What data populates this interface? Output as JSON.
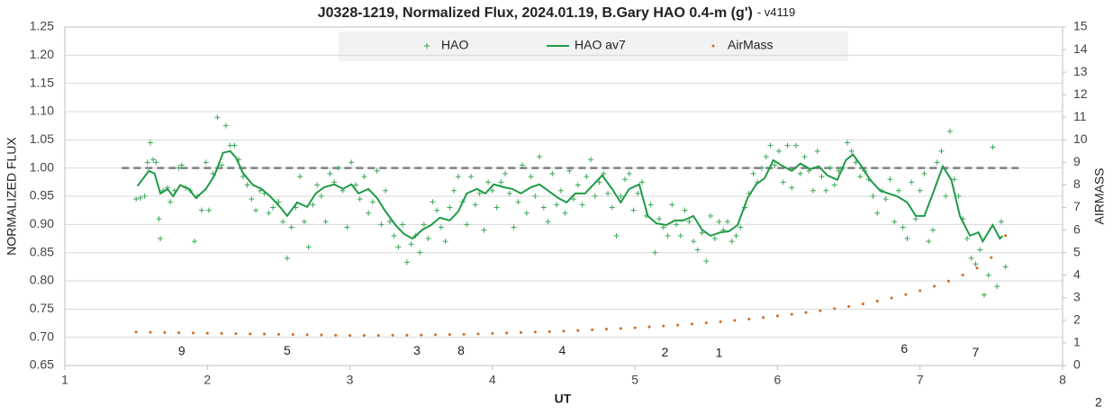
{
  "chart_data": {
    "type": "scatter",
    "title": "J0328-1219, Normalized Flux, 2024.01.19, B.Gary HAO 0.4-m (g')",
    "subtitle": "- v4119",
    "x_label": "UT",
    "y_label": "NORMALIZED FLUX",
    "y2_label": "AIRMASS",
    "xlim": [
      1,
      8
    ],
    "xticks": [
      1,
      2,
      3,
      4,
      5,
      6,
      7,
      8
    ],
    "ylim": [
      0.65,
      1.25
    ],
    "yticks": [
      {
        "value": 0.65,
        "label": "0.65"
      },
      {
        "value": 0.7,
        "label": "0.70"
      },
      {
        "value": 0.75,
        "label": "0.75"
      },
      {
        "value": 0.8,
        "label": "0.80"
      },
      {
        "value": 0.85,
        "label": "0.85"
      },
      {
        "value": 0.9,
        "label": "0.90"
      },
      {
        "value": 0.95,
        "label": "0.95"
      },
      {
        "value": 1,
        "label": "1.00"
      },
      {
        "value": 1.05,
        "label": "1.05"
      },
      {
        "value": 1.1,
        "label": "1.10"
      },
      {
        "value": 1.15,
        "label": "1.15"
      },
      {
        "value": 1.2,
        "label": "1.20"
      },
      {
        "value": 1.25,
        "label": "1.25"
      }
    ],
    "y2lim": [
      0,
      15
    ],
    "y2ticks": [
      0,
      1,
      2,
      3,
      4,
      5,
      6,
      7,
      8,
      9,
      10,
      11,
      12,
      13,
      14,
      15
    ],
    "grid": true,
    "legend": "top",
    "reference_line": {
      "y": 1,
      "x": [
        1.4,
        7.7
      ],
      "color": "#808080"
    },
    "series": [
      {
        "name": "HAO",
        "mark": "plus",
        "color": "#3aa85a",
        "x": [
          1.5,
          1.53,
          1.56,
          1.58,
          1.6,
          1.62,
          1.64,
          1.66,
          1.67,
          1.69,
          1.72,
          1.74,
          1.77,
          1.8,
          1.82,
          1.85,
          1.88,
          1.91,
          1.93,
          1.96,
          1.99,
          2.01,
          2.04,
          2.07,
          2.1,
          2.13,
          2.16,
          2.19,
          2.22,
          2.25,
          2.28,
          2.31,
          2.34,
          2.37,
          2.4,
          2.43,
          2.46,
          2.5,
          2.53,
          2.56,
          2.59,
          2.62,
          2.65,
          2.68,
          2.71,
          2.74,
          2.77,
          2.8,
          2.83,
          2.86,
          2.89,
          2.92,
          2.95,
          2.98,
          3.01,
          3.04,
          3.07,
          3.1,
          3.13,
          3.16,
          3.19,
          3.22,
          3.25,
          3.28,
          3.31,
          3.34,
          3.37,
          3.4,
          3.43,
          3.46,
          3.49,
          3.52,
          3.55,
          3.58,
          3.61,
          3.64,
          3.67,
          3.7,
          3.73,
          3.76,
          3.79,
          3.82,
          3.85,
          3.88,
          3.91,
          3.94,
          3.97,
          4.0,
          4.03,
          4.06,
          4.09,
          4.12,
          4.15,
          4.18,
          4.21,
          4.24,
          4.27,
          4.3,
          4.33,
          4.36,
          4.39,
          4.42,
          4.45,
          4.48,
          4.51,
          4.54,
          4.57,
          4.6,
          4.63,
          4.66,
          4.69,
          4.72,
          4.75,
          4.78,
          4.81,
          4.84,
          4.87,
          4.9,
          4.93,
          4.96,
          4.99,
          5.02,
          5.05,
          5.08,
          5.11,
          5.14,
          5.17,
          5.2,
          5.23,
          5.26,
          5.29,
          5.32,
          5.35,
          5.38,
          5.41,
          5.44,
          5.47,
          5.5,
          5.53,
          5.56,
          5.59,
          5.62,
          5.65,
          5.68,
          5.71,
          5.74,
          5.77,
          5.8,
          5.83,
          5.86,
          5.89,
          5.92,
          5.95,
          5.98,
          6.01,
          6.04,
          6.07,
          6.1,
          6.13,
          6.16,
          6.19,
          6.22,
          6.25,
          6.28,
          6.31,
          6.34,
          6.37,
          6.4,
          6.43,
          6.46,
          6.49,
          6.52,
          6.55,
          6.58,
          6.61,
          6.64,
          6.67,
          6.7,
          6.73,
          6.76,
          6.79,
          6.82,
          6.85,
          6.88,
          6.91,
          6.94,
          6.97,
          7.0,
          7.03,
          7.06,
          7.09,
          7.12,
          7.15,
          7.18,
          7.21,
          7.24,
          7.27,
          7.3,
          7.33,
          7.36,
          7.39,
          7.42,
          7.45,
          7.48,
          7.51,
          7.54,
          7.57,
          7.6
        ],
        "values": [
          0.945,
          0.947,
          0.95,
          1.01,
          1.045,
          1.015,
          1.01,
          0.91,
          0.875,
          0.96,
          0.965,
          0.94,
          0.96,
          1.0,
          1.005,
          0.965,
          0.96,
          0.87,
          0.95,
          0.925,
          1.01,
          0.925,
          0.99,
          1.09,
          1.005,
          1.075,
          1.04,
          1.04,
          1.015,
          0.985,
          0.97,
          0.945,
          0.925,
          0.96,
          0.955,
          0.92,
          0.93,
          0.94,
          0.905,
          0.84,
          0.895,
          0.93,
          0.985,
          0.905,
          0.86,
          0.935,
          0.97,
          0.95,
          0.905,
          0.99,
          0.975,
          1.0,
          0.96,
          0.895,
          1.01,
          0.97,
          0.945,
          0.985,
          0.92,
          0.94,
          0.995,
          0.9,
          0.96,
          0.905,
          0.88,
          0.86,
          0.9,
          0.833,
          0.865,
          0.88,
          0.85,
          0.9,
          0.875,
          0.94,
          0.925,
          0.895,
          0.87,
          0.93,
          0.96,
          0.985,
          0.94,
          0.9,
          0.985,
          0.935,
          0.955,
          0.89,
          0.975,
          0.96,
          0.93,
          0.975,
          0.99,
          0.955,
          0.895,
          0.94,
          1.005,
          0.92,
          0.985,
          0.95,
          1.02,
          0.93,
          0.905,
          0.99,
          0.935,
          0.96,
          0.92,
          0.995,
          0.945,
          0.97,
          0.935,
          0.985,
          1.015,
          0.95,
          0.975,
          0.99,
          0.955,
          0.93,
          0.88,
          0.95,
          0.98,
          0.99,
          0.925,
          0.955,
          0.975,
          0.915,
          0.935,
          0.85,
          0.91,
          0.895,
          0.88,
          0.935,
          0.9,
          0.88,
          0.925,
          0.905,
          0.87,
          0.855,
          0.885,
          0.835,
          0.915,
          0.875,
          0.905,
          0.89,
          0.905,
          0.87,
          0.88,
          0.895,
          0.93,
          0.955,
          0.99,
          0.975,
          1.0,
          1.02,
          1.04,
          1.005,
          1.03,
          0.975,
          1.04,
          0.965,
          1.04,
          0.99,
          1.02,
          0.995,
          0.96,
          1.03,
          0.985,
          0.96,
          1.0,
          0.97,
          0.995,
          1.0,
          1.045,
          1.03,
          1.01,
          0.985,
          0.995,
          0.98,
          0.95,
          0.92,
          0.96,
          0.945,
          0.98,
          0.905,
          0.96,
          0.895,
          0.875,
          0.975,
          0.91,
          0.96,
          0.99,
          0.87,
          0.89,
          1.01,
          1.03,
          0.95,
          1.065,
          0.98,
          0.95,
          0.91,
          0.875,
          0.84,
          0.83,
          0.855,
          0.775,
          0.81,
          1.037,
          0.79,
          0.905,
          0.825
        ]
      },
      {
        "name": "HAO av7",
        "mark": "line",
        "color": "#1e9b45",
        "x": [
          1.51,
          1.59,
          1.63,
          1.67,
          1.72,
          1.76,
          1.81,
          1.87,
          1.92,
          1.99,
          2.05,
          2.11,
          2.16,
          2.2,
          2.25,
          2.32,
          2.38,
          2.44,
          2.52,
          2.56,
          2.63,
          2.7,
          2.76,
          2.82,
          2.89,
          2.95,
          3.01,
          3.06,
          3.13,
          3.19,
          3.25,
          3.32,
          3.38,
          3.44,
          3.51,
          3.57,
          3.63,
          3.7,
          3.76,
          3.82,
          3.89,
          3.95,
          4.01,
          4.08,
          4.14,
          4.2,
          4.27,
          4.33,
          4.39,
          4.46,
          4.52,
          4.58,
          4.65,
          4.71,
          4.77,
          4.84,
          4.9,
          4.96,
          5.03,
          5.09,
          5.15,
          5.22,
          5.28,
          5.34,
          5.41,
          5.47,
          5.53,
          5.6,
          5.66,
          5.72,
          5.79,
          5.85,
          5.91,
          5.97,
          6.04,
          6.1,
          6.16,
          6.23,
          6.29,
          6.35,
          6.42,
          6.48,
          6.53,
          6.59,
          6.65,
          6.72,
          6.78,
          6.84,
          6.91,
          6.97,
          7.03,
          7.09,
          7.16,
          7.22,
          7.28,
          7.35,
          7.41,
          7.44,
          7.51,
          7.56,
          7.58
        ],
        "values": [
          0.968,
          0.995,
          0.99,
          0.955,
          0.963,
          0.95,
          0.97,
          0.963,
          0.947,
          0.963,
          0.987,
          1.027,
          1.03,
          1.019,
          0.991,
          0.97,
          0.963,
          0.95,
          0.928,
          0.915,
          0.939,
          0.931,
          0.955,
          0.966,
          0.971,
          0.963,
          0.971,
          0.955,
          0.963,
          0.947,
          0.923,
          0.899,
          0.883,
          0.875,
          0.891,
          0.899,
          0.912,
          0.907,
          0.923,
          0.955,
          0.963,
          0.955,
          0.971,
          0.966,
          0.963,
          0.955,
          0.966,
          0.971,
          0.96,
          0.947,
          0.939,
          0.955,
          0.955,
          0.971,
          0.987,
          0.963,
          0.939,
          0.963,
          0.971,
          0.915,
          0.902,
          0.899,
          0.907,
          0.907,
          0.915,
          0.891,
          0.88,
          0.886,
          0.888,
          0.899,
          0.947,
          0.971,
          0.982,
          1.014,
          1.003,
          0.995,
          1.008,
          0.998,
          1.003,
          0.987,
          0.979,
          1.014,
          1.024,
          1.003,
          0.979,
          0.96,
          0.955,
          0.95,
          0.939,
          0.915,
          0.915,
          0.955,
          1.003,
          0.979,
          0.915,
          0.88,
          0.886,
          0.87,
          0.899,
          0.875,
          0.88
        ]
      },
      {
        "name": "AirMass",
        "mark": "dot",
        "color": "#d2691e",
        "axis": "y2",
        "x": [
          1.5,
          1.6,
          1.7,
          1.8,
          1.9,
          2.0,
          2.1,
          2.2,
          2.3,
          2.4,
          2.5,
          2.6,
          2.7,
          2.8,
          2.9,
          3.0,
          3.1,
          3.2,
          3.3,
          3.4,
          3.5,
          3.6,
          3.7,
          3.8,
          3.9,
          4.0,
          4.1,
          4.2,
          4.3,
          4.4,
          4.5,
          4.6,
          4.7,
          4.8,
          4.9,
          5.0,
          5.1,
          5.2,
          5.3,
          5.4,
          5.5,
          5.6,
          5.7,
          5.8,
          5.9,
          6.0,
          6.1,
          6.2,
          6.3,
          6.4,
          6.5,
          6.6,
          6.7,
          6.8,
          6.9,
          7.0,
          7.1,
          7.2,
          7.3,
          7.4,
          7.5,
          7.6
        ],
        "values": [
          1.48,
          1.47,
          1.46,
          1.45,
          1.44,
          1.43,
          1.42,
          1.41,
          1.4,
          1.39,
          1.38,
          1.37,
          1.36,
          1.35,
          1.34,
          1.33,
          1.33,
          1.33,
          1.34,
          1.34,
          1.35,
          1.36,
          1.37,
          1.38,
          1.4,
          1.42,
          1.44,
          1.46,
          1.48,
          1.5,
          1.52,
          1.55,
          1.58,
          1.61,
          1.64,
          1.67,
          1.71,
          1.75,
          1.79,
          1.84,
          1.89,
          1.94,
          2.0,
          2.06,
          2.13,
          2.2,
          2.27,
          2.35,
          2.43,
          2.52,
          2.62,
          2.73,
          2.85,
          2.99,
          3.14,
          3.31,
          3.51,
          3.74,
          4.01,
          4.32,
          4.78,
          5.75
        ]
      }
    ],
    "annotations": [
      {
        "text": "9",
        "x": 1.82,
        "y": 0.674
      },
      {
        "text": "5",
        "x": 2.56,
        "y": 0.675
      },
      {
        "text": "3",
        "x": 3.47,
        "y": 0.675
      },
      {
        "text": "8",
        "x": 3.78,
        "y": 0.675
      },
      {
        "text": "4",
        "x": 4.49,
        "y": 0.675
      },
      {
        "text": "2",
        "x": 5.21,
        "y": 0.672
      },
      {
        "text": "1",
        "x": 5.59,
        "y": 0.671
      },
      {
        "text": "6",
        "x": 6.89,
        "y": 0.678
      },
      {
        "text": "7",
        "x": 7.39,
        "y": 0.672
      }
    ],
    "footnote": "2"
  }
}
